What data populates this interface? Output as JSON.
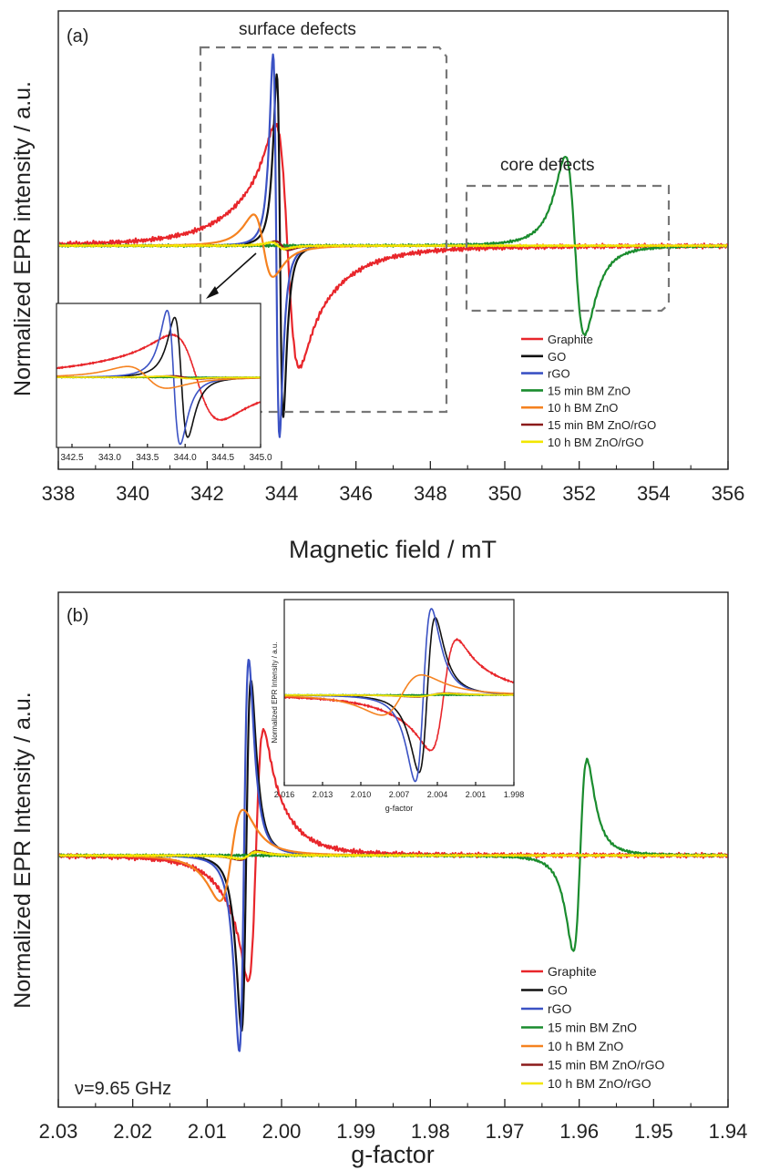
{
  "chart_data": [
    {
      "type": "line",
      "panel_label": "(a)",
      "xlabel": "Magnetic field / mT",
      "ylabel": "Normalized EPR intensity / a.u.",
      "xlim": [
        338,
        356
      ],
      "ylim": [
        -1.0,
        1.05
      ],
      "xticks": [
        "338",
        "340",
        "342",
        "344",
        "346",
        "348",
        "350",
        "352",
        "354",
        "356"
      ],
      "legend_position": "lower-right",
      "annotations": {
        "surface": "surface defects",
        "core": "core defects"
      },
      "series": [
        {
          "name": "Graphite",
          "color": "#e8262b",
          "kind": "wide",
          "center": 344.15,
          "amp": 1.0,
          "width": 0.5,
          "tail": 1.5,
          "noise": 0.012
        },
        {
          "name": "GO",
          "color": "#111111",
          "kind": "deriv",
          "center": 343.95,
          "amp": 0.77,
          "width": 0.15,
          "noise": 0.0
        },
        {
          "name": "rGO",
          "color": "#3b52c4",
          "kind": "deriv",
          "center": 343.85,
          "amp": 0.86,
          "width": 0.15,
          "noise": 0.0
        },
        {
          "name": "15 min BM ZnO",
          "color": "#1a8c2e",
          "kind": "deriv",
          "center": 351.9,
          "amp": 0.4,
          "width": 0.45,
          "noise": 0.006
        },
        {
          "name": "10 h BM ZnO",
          "color": "#f58220",
          "kind": "deriv",
          "center": 343.5,
          "amp": 0.14,
          "width": 0.45,
          "noise": 0.0
        },
        {
          "name": "15 min BM ZnO/rGO",
          "color": "#8b1a1a",
          "kind": "deriv",
          "center": 344.0,
          "amp": 0.02,
          "width": 0.3,
          "noise": 0.0
        },
        {
          "name": "10 h BM ZnO/rGO",
          "color": "#f2e600",
          "kind": "deriv",
          "center": 343.9,
          "amp": 0.015,
          "width": 0.3,
          "noise": 0.004
        }
      ],
      "inset": {
        "xlim": [
          342.3,
          345.0
        ],
        "ylim": [
          -0.9,
          0.95
        ],
        "xticks": [
          "342.5",
          "343.0",
          "343.5",
          "344.0",
          "344.5",
          "345.0"
        ]
      }
    },
    {
      "type": "line",
      "panel_label": "(b)",
      "xlabel": "g-factor",
      "ylabel": "Normalized EPR Intensity / a.u.",
      "xlim": [
        2.03,
        1.94
      ],
      "ylim": [
        -1.1,
        1.15
      ],
      "xticks": [
        "2.03",
        "2.02",
        "2.01",
        "2.00",
        "1.99",
        "1.98",
        "1.97",
        "1.96",
        "1.95",
        "1.94"
      ],
      "frequency_label": "ν=9.65 GHz",
      "legend_position": "lower-right",
      "series": [
        {
          "name": "Graphite",
          "color": "#e8262b",
          "kind": "wide",
          "center": 2.0035,
          "amp": 1.0,
          "width": 0.0016,
          "tail": 0.0045,
          "noise": 0.012
        },
        {
          "name": "GO",
          "color": "#111111",
          "kind": "deriv",
          "center": 2.0048,
          "amp": 0.77,
          "width": 0.0011,
          "noise": 0.0
        },
        {
          "name": "rGO",
          "color": "#3b52c4",
          "kind": "deriv",
          "center": 2.0051,
          "amp": 0.86,
          "width": 0.0011,
          "noise": 0.0
        },
        {
          "name": "15 min BM ZnO",
          "color": "#1a8c2e",
          "kind": "deriv",
          "center": 1.9598,
          "amp": 0.42,
          "width": 0.0016,
          "noise": 0.006
        },
        {
          "name": "10 h BM ZnO",
          "color": "#f58220",
          "kind": "deriv",
          "center": 2.0068,
          "amp": 0.2,
          "width": 0.0027,
          "noise": 0.0
        },
        {
          "name": "15 min BM ZnO/rGO",
          "color": "#8b1a1a",
          "kind": "deriv",
          "center": 2.0045,
          "amp": 0.02,
          "width": 0.002,
          "noise": 0.0
        },
        {
          "name": "10 h BM ZnO/rGO",
          "color": "#f2e600",
          "kind": "deriv",
          "center": 2.0045,
          "amp": 0.015,
          "width": 0.002,
          "noise": 0.004
        }
      ],
      "inset": {
        "xlim": [
          2.016,
          1.998
        ],
        "ylim": [
          -0.9,
          0.95
        ],
        "xticks": [
          "2.016",
          "2.013",
          "2.010",
          "2.007",
          "2.004",
          "2.001",
          "1.998"
        ],
        "xlabel": "g-factor",
        "ylabel": "Normalized EPR Intensity / a.u."
      }
    }
  ]
}
